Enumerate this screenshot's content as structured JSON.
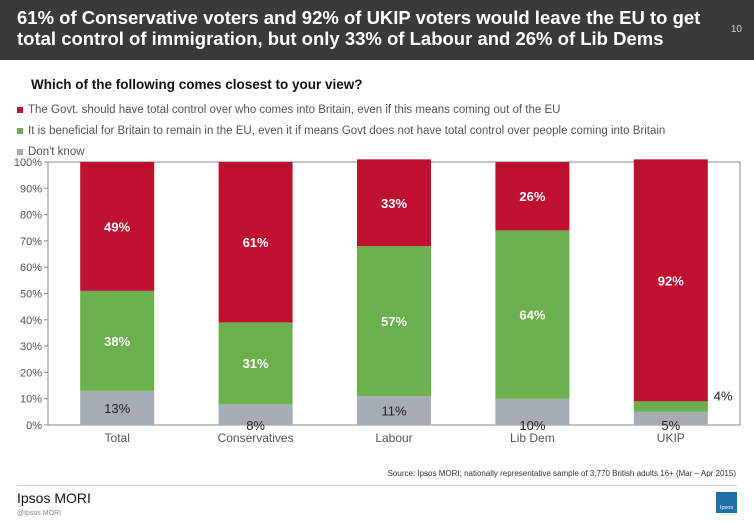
{
  "header": {
    "title": "61% of Conservative voters and 92% of UKIP voters would leave the EU to get total control of immigration, but only 33% of Labour and 26% of Lib Dems",
    "page_number": "10"
  },
  "question": "Which of the following comes closest to your view?",
  "legend": [
    {
      "label": "The Govt. should have total control over who comes into Britain, even if this means coming out of the EU",
      "color": "#c0102f"
    },
    {
      "label": "It is beneficial for Britain to remain in the EU, even it if means Govt does not have total control over people coming into Britain",
      "color": "#6ab04c"
    },
    {
      "label": "Don't know",
      "color": "#a5acb5"
    }
  ],
  "chart_data": {
    "type": "bar",
    "stacked": true,
    "categories": [
      "Total",
      "Conservatives",
      "Labour",
      "Lib Dem",
      "UKIP"
    ],
    "series": [
      {
        "name": "Don't know",
        "values": [
          13,
          8,
          11,
          10,
          5
        ],
        "labels": [
          "13%",
          "8%",
          "11%",
          "10%",
          "5%"
        ],
        "color": "#a5acb5"
      },
      {
        "name": "It is beneficial for Britain to remain in the EU, even it if means Govt does not have total control over people coming into Britain",
        "values": [
          38,
          31,
          57,
          64,
          4
        ],
        "labels": [
          "38%",
          "31%",
          "57%",
          "64%",
          "4%"
        ],
        "color": "#6ab04c"
      },
      {
        "name": "The Govt. should have total control over who comes into Britain, even if this means coming out of the EU",
        "values": [
          49,
          61,
          33,
          26,
          92
        ],
        "labels": [
          "49%",
          "61%",
          "33%",
          "26%",
          "92%"
        ],
        "color": "#c0102f"
      }
    ],
    "y_ticks": [
      "0%",
      "10%",
      "20%",
      "30%",
      "40%",
      "50%",
      "60%",
      "70%",
      "80%",
      "90%",
      "100%"
    ],
    "ylim": [
      0,
      100
    ],
    "grid": false,
    "legend_position": "top"
  },
  "footer": {
    "source": "Source: Ipsos MORI; nationally representative sample of 3,770 British adults 16+ (Mar – Apr 2015)",
    "brand": "Ipsos MORI",
    "copyright": "@Ipsos MORI",
    "logo_text": "Ipsos"
  }
}
